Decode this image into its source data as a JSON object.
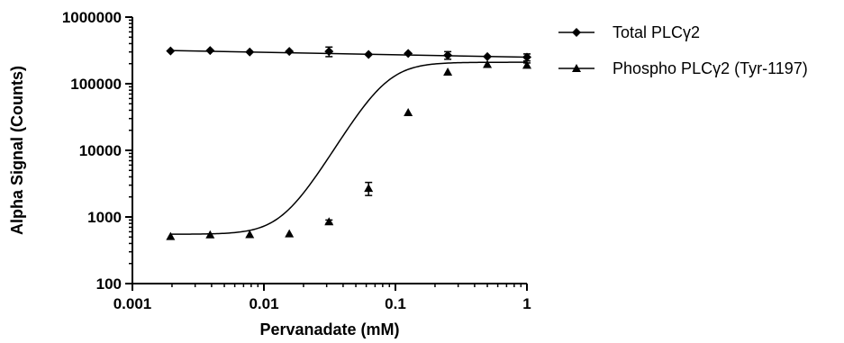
{
  "chart_data": {
    "type": "scatter",
    "title": "",
    "xlabel": "Pervanadate (mM)",
    "ylabel": "Alpha Signal (Counts)",
    "x_scale": "log",
    "y_scale": "log",
    "xlim": [
      0.001,
      1
    ],
    "ylim": [
      100,
      1000000
    ],
    "x_ticks": [
      "0.001",
      "0.01",
      "0.1",
      "1"
    ],
    "y_ticks": [
      "100",
      "1000",
      "10000",
      "100000",
      "1000000"
    ],
    "grid": false,
    "legend_position": "right",
    "series": [
      {
        "name": "Total PLCγ2",
        "marker": "diamond",
        "color": "#000000",
        "x": [
          0.00195,
          0.0039,
          0.0078,
          0.0156,
          0.03125,
          0.0625,
          0.125,
          0.25,
          0.5,
          1
        ],
        "y": [
          310000,
          315000,
          300000,
          305000,
          305000,
          275000,
          285000,
          268000,
          255000,
          250000
        ],
        "error": [
          0,
          0,
          0,
          0,
          50000,
          0,
          0,
          35000,
          0,
          30000
        ],
        "fit_x": [
          0.00195,
          1
        ],
        "fit_y": [
          315000,
          250000
        ]
      },
      {
        "name": "Phospho PLCγ2 (Tyr-1197)",
        "marker": "triangle",
        "color": "#000000",
        "x": [
          0.00195,
          0.0039,
          0.0078,
          0.0156,
          0.03125,
          0.0625,
          0.125,
          0.25,
          0.5,
          1
        ],
        "y": [
          510,
          540,
          545,
          560,
          850,
          2700,
          37000,
          150000,
          195000,
          190000
        ],
        "error": [
          0,
          0,
          0,
          0,
          50,
          600,
          0,
          0,
          0,
          15000
        ],
        "fit_bottom": 550,
        "fit_top": 210000,
        "fit_log_ec50": -1.07,
        "fit_hill": 3.3
      }
    ]
  }
}
